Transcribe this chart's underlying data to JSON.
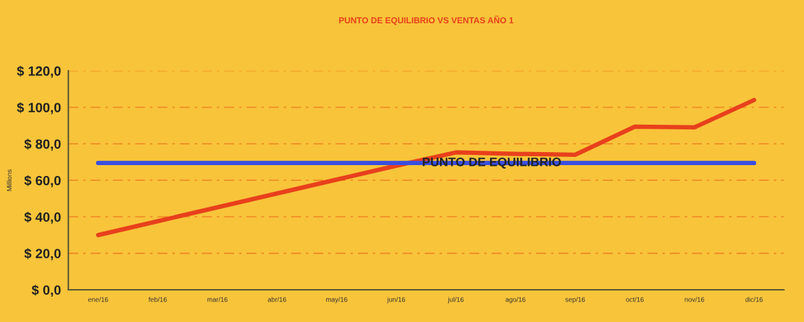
{
  "chart_data": {
    "type": "line",
    "title": "PUNTO DE EQUILIBRIO VS VENTAS AÑO 1",
    "ylabel": "Millions",
    "categories": [
      "ene/16",
      "feb/16",
      "mar/16",
      "abr/16",
      "may/16",
      "jun/16",
      "jul/16",
      "ago/16",
      "sep/16",
      "oct/16",
      "nov/16",
      "dic/16"
    ],
    "series": [
      {
        "color": "#e8401c",
        "values": [
          30,
          37.6,
          45.2,
          52.8,
          60.4,
          68,
          75.3,
          74.5,
          74,
          89.4,
          89,
          104
        ]
      },
      {
        "name": "PUNTO DE EQUILIBRIO",
        "color": "#3a4fe0",
        "values": [
          69.5,
          69.5,
          69.5,
          69.5,
          69.5,
          69.5,
          69.5,
          69.5,
          69.5,
          69.5,
          69.5,
          69.5
        ]
      }
    ],
    "ylim": [
      0,
      120
    ],
    "yticks": [
      {
        "value": 0,
        "label": "$ 0,0"
      },
      {
        "value": 20,
        "label": "$ 20,0"
      },
      {
        "value": 40,
        "label": "$ 40,0"
      },
      {
        "value": 60,
        "label": "$ 60,0"
      },
      {
        "value": 80,
        "label": "$ 80,0"
      },
      {
        "value": 100,
        "label": "$ 100,0"
      },
      {
        "value": 120,
        "label": "$ 120,0"
      }
    ],
    "grid": "y",
    "legend": false,
    "marker": "none",
    "line_style": "solid"
  }
}
